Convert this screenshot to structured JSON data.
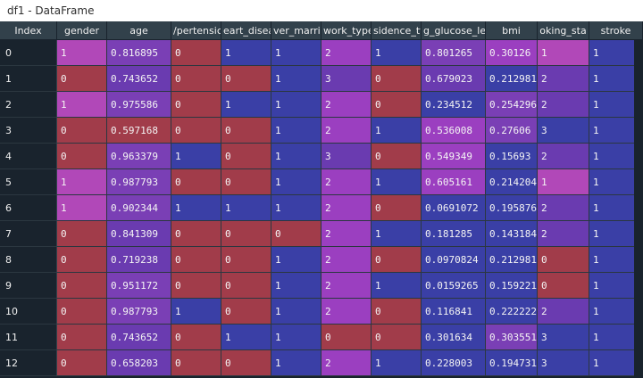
{
  "window": {
    "title": "df1 - DataFrame"
  },
  "table": {
    "columns": [
      "Index",
      "gender",
      "age",
      "hypertension",
      "heart_disease",
      "ever_married",
      "work_type",
      "Residence_type",
      "avg_glucose_level",
      "bmi",
      "smoking_status",
      "stroke"
    ],
    "visible_headers": [
      "Index",
      "gender",
      "age",
      "/pertensic",
      "eart_disea",
      "ver_marrie",
      "work_type",
      "sidence_ty",
      "g_glucose_lev",
      "bmi",
      "oking_sta",
      "stroke"
    ],
    "rows": [
      [
        "0",
        "1",
        "0.816895",
        "0",
        "1",
        "1",
        "2",
        "1",
        "0.801265",
        "0.30126",
        "1",
        "1"
      ],
      [
        "1",
        "0",
        "0.743652",
        "0",
        "0",
        "1",
        "3",
        "0",
        "0.679023",
        "0.212981",
        "2",
        "1"
      ],
      [
        "2",
        "1",
        "0.975586",
        "0",
        "1",
        "1",
        "2",
        "0",
        "0.234512",
        "0.254296",
        "2",
        "1"
      ],
      [
        "3",
        "0",
        "0.597168",
        "0",
        "0",
        "1",
        "2",
        "1",
        "0.536008",
        "0.27606",
        "3",
        "1"
      ],
      [
        "4",
        "0",
        "0.963379",
        "1",
        "0",
        "1",
        "3",
        "0",
        "0.549349",
        "0.15693",
        "2",
        "1"
      ],
      [
        "5",
        "1",
        "0.987793",
        "0",
        "0",
        "1",
        "2",
        "1",
        "0.605161",
        "0.214204",
        "1",
        "1"
      ],
      [
        "6",
        "1",
        "0.902344",
        "1",
        "1",
        "1",
        "2",
        "0",
        "0.0691072",
        "0.195876",
        "2",
        "1"
      ],
      [
        "7",
        "0",
        "0.841309",
        "0",
        "0",
        "0",
        "2",
        "1",
        "0.181285",
        "0.143184",
        "2",
        "1"
      ],
      [
        "8",
        "0",
        "0.719238",
        "0",
        "0",
        "1",
        "2",
        "0",
        "0.0970824",
        "0.212981",
        "0",
        "1"
      ],
      [
        "9",
        "0",
        "0.951172",
        "0",
        "0",
        "1",
        "2",
        "1",
        "0.0159265",
        "0.159221",
        "0",
        "1"
      ],
      [
        "10",
        "0",
        "0.987793",
        "1",
        "0",
        "1",
        "2",
        "0",
        "0.116841",
        "0.222222",
        "2",
        "1"
      ],
      [
        "11",
        "0",
        "0.743652",
        "0",
        "1",
        "1",
        "0",
        "0",
        "0.301634",
        "0.303551",
        "3",
        "1"
      ],
      [
        "12",
        "0",
        "0.658203",
        "0",
        "0",
        "1",
        "2",
        "1",
        "0.228003",
        "0.194731",
        "3",
        "1"
      ]
    ],
    "cell_colors": [
      [
        "pink",
        "purple",
        "red",
        "blue",
        "blue",
        "magenta",
        "blue",
        "purple",
        "magenta",
        "pink",
        "blue"
      ],
      [
        "red",
        "violet",
        "red",
        "red",
        "blue",
        "violet",
        "red",
        "violet",
        "blue",
        "violet",
        "blue"
      ],
      [
        "pink",
        "purple",
        "red",
        "blue",
        "blue",
        "magenta",
        "red",
        "blue",
        "purple",
        "violet",
        "blue"
      ],
      [
        "red",
        "red",
        "red",
        "red",
        "blue",
        "magenta",
        "blue",
        "magenta",
        "purple",
        "blue",
        "blue"
      ],
      [
        "red",
        "purple",
        "blue",
        "red",
        "blue",
        "violet",
        "red",
        "magenta",
        "blue",
        "violet",
        "blue"
      ],
      [
        "pink",
        "purple",
        "red",
        "red",
        "blue",
        "magenta",
        "blue",
        "magenta",
        "blue",
        "pink",
        "blue"
      ],
      [
        "pink",
        "purple",
        "blue",
        "blue",
        "blue",
        "magenta",
        "red",
        "blue",
        "blue",
        "violet",
        "blue"
      ],
      [
        "red",
        "violet",
        "red",
        "red",
        "red",
        "magenta",
        "blue",
        "blue",
        "blue",
        "violet",
        "blue"
      ],
      [
        "red",
        "violet",
        "red",
        "red",
        "blue",
        "magenta",
        "red",
        "blue",
        "blue",
        "red",
        "blue"
      ],
      [
        "red",
        "purple",
        "red",
        "red",
        "blue",
        "magenta",
        "blue",
        "blue",
        "blue",
        "red",
        "blue"
      ],
      [
        "red",
        "purple",
        "blue",
        "red",
        "blue",
        "magenta",
        "red",
        "blue",
        "blue",
        "violet",
        "blue"
      ],
      [
        "red",
        "violet",
        "red",
        "blue",
        "blue",
        "red",
        "red",
        "blue",
        "purple",
        "blue",
        "blue"
      ],
      [
        "red",
        "violet",
        "red",
        "red",
        "blue",
        "magenta",
        "blue",
        "blue",
        "blue",
        "blue",
        "blue"
      ]
    ]
  },
  "colors": {
    "header_bg": "#32414b",
    "index_bg": "#19232d",
    "red": "#a13c4a",
    "blue": "#3a3fa6",
    "purple": "#7a3fb5",
    "magenta": "#9b3fc0"
  }
}
